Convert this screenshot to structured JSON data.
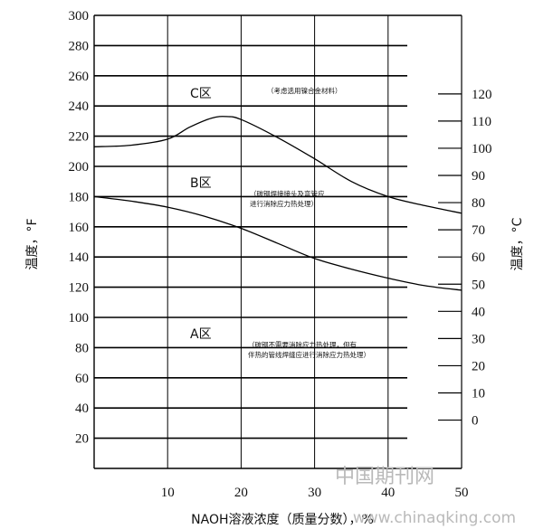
{
  "chart_data": {
    "type": "line",
    "xlabel": "NAOH溶液浓度（质量分数），%",
    "ylabel_left": "温度，°F",
    "ylabel_right": "温度，°C",
    "x_ticks": [
      10,
      20,
      30,
      40,
      50
    ],
    "xlim": [
      0,
      50
    ],
    "y_left_ticks": [
      20,
      40,
      60,
      80,
      100,
      120,
      140,
      160,
      180,
      200,
      220,
      240,
      260,
      280,
      300
    ],
    "ylim_left": [
      0,
      300
    ],
    "y_right_ticks": [
      0,
      10,
      20,
      30,
      40,
      50,
      60,
      70,
      80,
      90,
      100,
      110,
      120
    ],
    "grid": true,
    "series": [
      {
        "values_x": [
          0,
          5,
          10,
          13,
          16,
          18,
          20,
          25,
          30,
          35,
          40,
          45,
          50
        ],
        "values_y": [
          213,
          214,
          218,
          226,
          232,
          233,
          231,
          219,
          205,
          190,
          180,
          174,
          169
        ]
      },
      {
        "values_x": [
          0,
          5,
          10,
          15,
          20,
          25,
          30,
          35,
          40,
          45,
          50
        ],
        "values_y": [
          180,
          177,
          173,
          167,
          159,
          149,
          139,
          132,
          126,
          121,
          118
        ]
      }
    ],
    "zones": [
      {
        "label": "C区",
        "note": [
          "（考虑选用镍合金材料）"
        ]
      },
      {
        "label": "B区",
        "note": [
          "（碳钢焊接接头及弯管应",
          "进行消除应力热处理）"
        ]
      },
      {
        "label": "A区",
        "note": [
          "（碳钢不需要消除应力热处理，但有",
          "伴热的管线焊缝应进行消除应力热处理）"
        ]
      }
    ]
  },
  "watermark": {
    "line1": "中国期刊网",
    "line2": "www.chinaqking.com"
  }
}
